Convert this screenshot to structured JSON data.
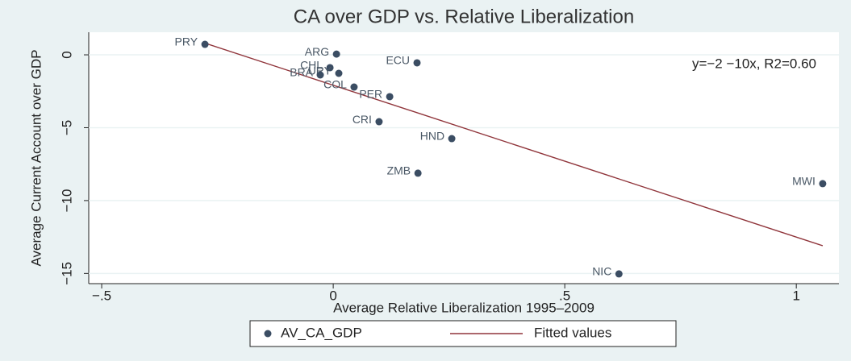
{
  "chart_data": {
    "type": "scatter",
    "title": "CA over GDP vs. Relative Liberalization",
    "x_label": "Average Relative Liberalization 1995–2009",
    "y_label": "Average Current Account over GDP",
    "annotation": "y=−2 −10x, R2=0.60",
    "xlim": [
      -0.528,
      1.092
    ],
    "ylim": [
      -15.7,
      1.55
    ],
    "xticks": [
      {
        "value": -0.5,
        "label": "−.5"
      },
      0,
      {
        "value": 0.5,
        "label": ".5"
      },
      1
    ],
    "yticks": [
      0,
      {
        "value": -5,
        "label": "−5"
      },
      {
        "value": -10,
        "label": "−10"
      },
      {
        "value": -15,
        "label": "−15"
      }
    ],
    "grid": true,
    "series": [
      {
        "name": "AV_CA_GDP",
        "type": "scatter",
        "color": "#3b4d63",
        "labels": [
          "PRY",
          "ARG",
          "CHL",
          "URY",
          "BRA",
          "ECU",
          "COL",
          "PER",
          "CRI",
          "HND",
          "ZMB",
          "MWI",
          "NIC"
        ],
        "x": [
          -0.277,
          0.007,
          -0.007,
          0.012,
          -0.028,
          0.181,
          0.045,
          0.122,
          0.099,
          0.256,
          0.183,
          1.057,
          0.617
        ],
        "values": [
          0.72,
          0.05,
          -0.88,
          -1.27,
          -1.38,
          -0.55,
          -2.21,
          -2.87,
          -4.59,
          -5.75,
          -8.12,
          -8.84,
          -15.03
        ]
      },
      {
        "name": "Fitted values",
        "type": "line",
        "color": "#90353b",
        "x": [
          -0.277,
          1.057
        ],
        "values": [
          0.8,
          -13.1
        ]
      }
    ]
  }
}
